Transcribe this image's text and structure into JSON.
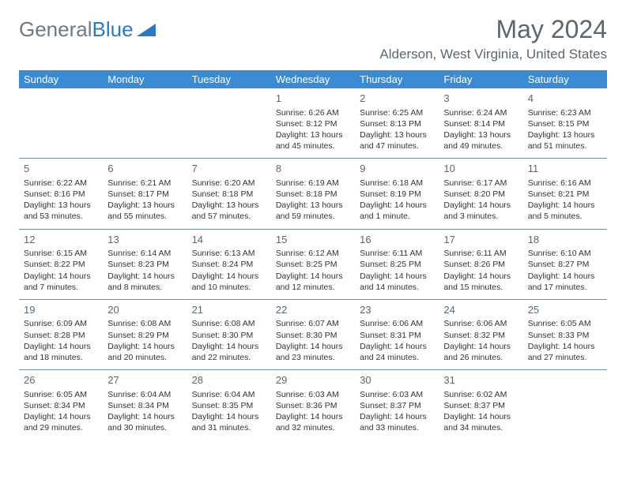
{
  "logo": {
    "text1": "General",
    "text2": "Blue"
  },
  "title": "May 2024",
  "location": "Alderson, West Virginia, United States",
  "colors": {
    "header_bg": "#3b8bd4",
    "header_text": "#ffffff",
    "text_gray": "#5a6670",
    "logo_gray": "#6b7a85",
    "logo_blue": "#2a7abf",
    "divider": "#6b8bb0"
  },
  "day_headers": [
    "Sunday",
    "Monday",
    "Tuesday",
    "Wednesday",
    "Thursday",
    "Friday",
    "Saturday"
  ],
  "weeks": [
    [
      {
        "n": "",
        "sr": "",
        "ss": "",
        "dl": ""
      },
      {
        "n": "",
        "sr": "",
        "ss": "",
        "dl": ""
      },
      {
        "n": "",
        "sr": "",
        "ss": "",
        "dl": ""
      },
      {
        "n": "1",
        "sr": "Sunrise: 6:26 AM",
        "ss": "Sunset: 8:12 PM",
        "dl": "Daylight: 13 hours and 45 minutes."
      },
      {
        "n": "2",
        "sr": "Sunrise: 6:25 AM",
        "ss": "Sunset: 8:13 PM",
        "dl": "Daylight: 13 hours and 47 minutes."
      },
      {
        "n": "3",
        "sr": "Sunrise: 6:24 AM",
        "ss": "Sunset: 8:14 PM",
        "dl": "Daylight: 13 hours and 49 minutes."
      },
      {
        "n": "4",
        "sr": "Sunrise: 6:23 AM",
        "ss": "Sunset: 8:15 PM",
        "dl": "Daylight: 13 hours and 51 minutes."
      }
    ],
    [
      {
        "n": "5",
        "sr": "Sunrise: 6:22 AM",
        "ss": "Sunset: 8:16 PM",
        "dl": "Daylight: 13 hours and 53 minutes."
      },
      {
        "n": "6",
        "sr": "Sunrise: 6:21 AM",
        "ss": "Sunset: 8:17 PM",
        "dl": "Daylight: 13 hours and 55 minutes."
      },
      {
        "n": "7",
        "sr": "Sunrise: 6:20 AM",
        "ss": "Sunset: 8:18 PM",
        "dl": "Daylight: 13 hours and 57 minutes."
      },
      {
        "n": "8",
        "sr": "Sunrise: 6:19 AM",
        "ss": "Sunset: 8:18 PM",
        "dl": "Daylight: 13 hours and 59 minutes."
      },
      {
        "n": "9",
        "sr": "Sunrise: 6:18 AM",
        "ss": "Sunset: 8:19 PM",
        "dl": "Daylight: 14 hours and 1 minute."
      },
      {
        "n": "10",
        "sr": "Sunrise: 6:17 AM",
        "ss": "Sunset: 8:20 PM",
        "dl": "Daylight: 14 hours and 3 minutes."
      },
      {
        "n": "11",
        "sr": "Sunrise: 6:16 AM",
        "ss": "Sunset: 8:21 PM",
        "dl": "Daylight: 14 hours and 5 minutes."
      }
    ],
    [
      {
        "n": "12",
        "sr": "Sunrise: 6:15 AM",
        "ss": "Sunset: 8:22 PM",
        "dl": "Daylight: 14 hours and 7 minutes."
      },
      {
        "n": "13",
        "sr": "Sunrise: 6:14 AM",
        "ss": "Sunset: 8:23 PM",
        "dl": "Daylight: 14 hours and 8 minutes."
      },
      {
        "n": "14",
        "sr": "Sunrise: 6:13 AM",
        "ss": "Sunset: 8:24 PM",
        "dl": "Daylight: 14 hours and 10 minutes."
      },
      {
        "n": "15",
        "sr": "Sunrise: 6:12 AM",
        "ss": "Sunset: 8:25 PM",
        "dl": "Daylight: 14 hours and 12 minutes."
      },
      {
        "n": "16",
        "sr": "Sunrise: 6:11 AM",
        "ss": "Sunset: 8:25 PM",
        "dl": "Daylight: 14 hours and 14 minutes."
      },
      {
        "n": "17",
        "sr": "Sunrise: 6:11 AM",
        "ss": "Sunset: 8:26 PM",
        "dl": "Daylight: 14 hours and 15 minutes."
      },
      {
        "n": "18",
        "sr": "Sunrise: 6:10 AM",
        "ss": "Sunset: 8:27 PM",
        "dl": "Daylight: 14 hours and 17 minutes."
      }
    ],
    [
      {
        "n": "19",
        "sr": "Sunrise: 6:09 AM",
        "ss": "Sunset: 8:28 PM",
        "dl": "Daylight: 14 hours and 18 minutes."
      },
      {
        "n": "20",
        "sr": "Sunrise: 6:08 AM",
        "ss": "Sunset: 8:29 PM",
        "dl": "Daylight: 14 hours and 20 minutes."
      },
      {
        "n": "21",
        "sr": "Sunrise: 6:08 AM",
        "ss": "Sunset: 8:30 PM",
        "dl": "Daylight: 14 hours and 22 minutes."
      },
      {
        "n": "22",
        "sr": "Sunrise: 6:07 AM",
        "ss": "Sunset: 8:30 PM",
        "dl": "Daylight: 14 hours and 23 minutes."
      },
      {
        "n": "23",
        "sr": "Sunrise: 6:06 AM",
        "ss": "Sunset: 8:31 PM",
        "dl": "Daylight: 14 hours and 24 minutes."
      },
      {
        "n": "24",
        "sr": "Sunrise: 6:06 AM",
        "ss": "Sunset: 8:32 PM",
        "dl": "Daylight: 14 hours and 26 minutes."
      },
      {
        "n": "25",
        "sr": "Sunrise: 6:05 AM",
        "ss": "Sunset: 8:33 PM",
        "dl": "Daylight: 14 hours and 27 minutes."
      }
    ],
    [
      {
        "n": "26",
        "sr": "Sunrise: 6:05 AM",
        "ss": "Sunset: 8:34 PM",
        "dl": "Daylight: 14 hours and 29 minutes."
      },
      {
        "n": "27",
        "sr": "Sunrise: 6:04 AM",
        "ss": "Sunset: 8:34 PM",
        "dl": "Daylight: 14 hours and 30 minutes."
      },
      {
        "n": "28",
        "sr": "Sunrise: 6:04 AM",
        "ss": "Sunset: 8:35 PM",
        "dl": "Daylight: 14 hours and 31 minutes."
      },
      {
        "n": "29",
        "sr": "Sunrise: 6:03 AM",
        "ss": "Sunset: 8:36 PM",
        "dl": "Daylight: 14 hours and 32 minutes."
      },
      {
        "n": "30",
        "sr": "Sunrise: 6:03 AM",
        "ss": "Sunset: 8:37 PM",
        "dl": "Daylight: 14 hours and 33 minutes."
      },
      {
        "n": "31",
        "sr": "Sunrise: 6:02 AM",
        "ss": "Sunset: 8:37 PM",
        "dl": "Daylight: 14 hours and 34 minutes."
      },
      {
        "n": "",
        "sr": "",
        "ss": "",
        "dl": ""
      }
    ]
  ]
}
